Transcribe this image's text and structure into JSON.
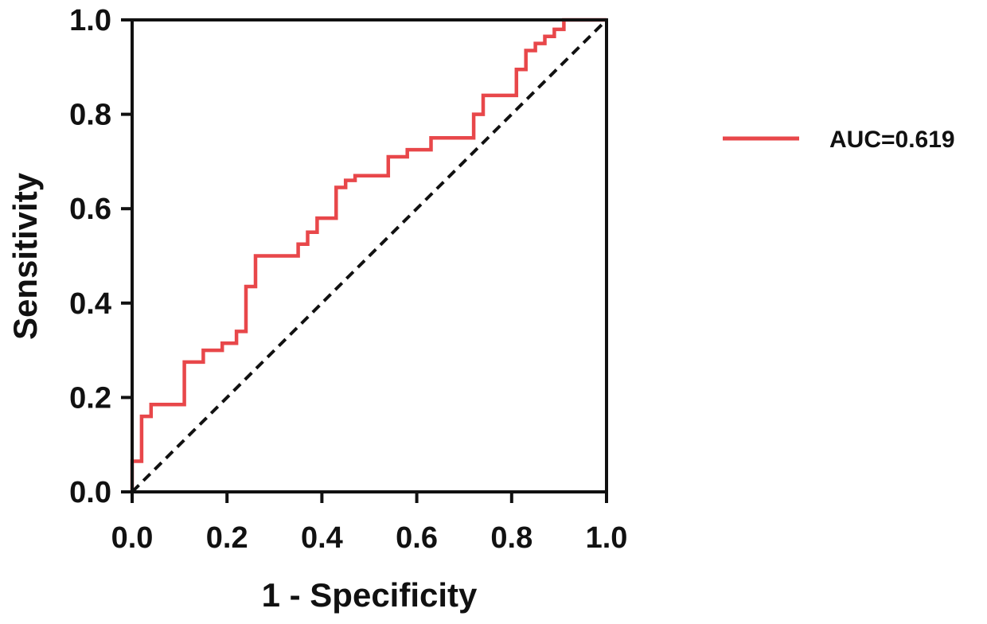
{
  "chart_data": {
    "type": "line",
    "title": "",
    "xlabel": "1 - Specificity",
    "ylabel": "Sensitivity",
    "xlim": [
      0,
      1
    ],
    "ylim": [
      0,
      1
    ],
    "x_ticks": [
      "0.0",
      "0.2",
      "0.4",
      "0.6",
      "0.8",
      "1.0"
    ],
    "y_ticks": [
      "0.0",
      "0.2",
      "0.4",
      "0.6",
      "0.8",
      "1.0"
    ],
    "grid": false,
    "legend_position": "right",
    "series": [
      {
        "name": "AUC=0.619",
        "color": "#e8474a",
        "style": "step",
        "x": [
          0.0,
          0.0,
          0.02,
          0.02,
          0.04,
          0.04,
          0.11,
          0.11,
          0.15,
          0.15,
          0.19,
          0.19,
          0.22,
          0.22,
          0.24,
          0.24,
          0.26,
          0.26,
          0.35,
          0.35,
          0.37,
          0.37,
          0.39,
          0.39,
          0.43,
          0.43,
          0.45,
          0.45,
          0.47,
          0.47,
          0.54,
          0.54,
          0.58,
          0.58,
          0.63,
          0.63,
          0.72,
          0.72,
          0.74,
          0.74,
          0.81,
          0.81,
          0.83,
          0.83,
          0.85,
          0.85,
          0.87,
          0.87,
          0.89,
          0.89,
          0.91,
          0.91,
          1.0
        ],
        "y": [
          0.0,
          0.065,
          0.065,
          0.16,
          0.16,
          0.185,
          0.185,
          0.275,
          0.275,
          0.3,
          0.3,
          0.315,
          0.315,
          0.34,
          0.34,
          0.435,
          0.435,
          0.5,
          0.5,
          0.525,
          0.525,
          0.55,
          0.55,
          0.58,
          0.58,
          0.645,
          0.645,
          0.66,
          0.66,
          0.67,
          0.67,
          0.71,
          0.71,
          0.725,
          0.725,
          0.75,
          0.75,
          0.8,
          0.8,
          0.84,
          0.84,
          0.895,
          0.895,
          0.935,
          0.935,
          0.95,
          0.95,
          0.965,
          0.965,
          0.98,
          0.98,
          1.0,
          1.0
        ]
      },
      {
        "name": "",
        "color": "#111111",
        "style": "dashed",
        "x": [
          0.0,
          1.0
        ],
        "y": [
          0.0,
          1.0
        ]
      }
    ],
    "legend": [
      {
        "label": "AUC=0.619",
        "color": "#e8474a"
      }
    ]
  }
}
